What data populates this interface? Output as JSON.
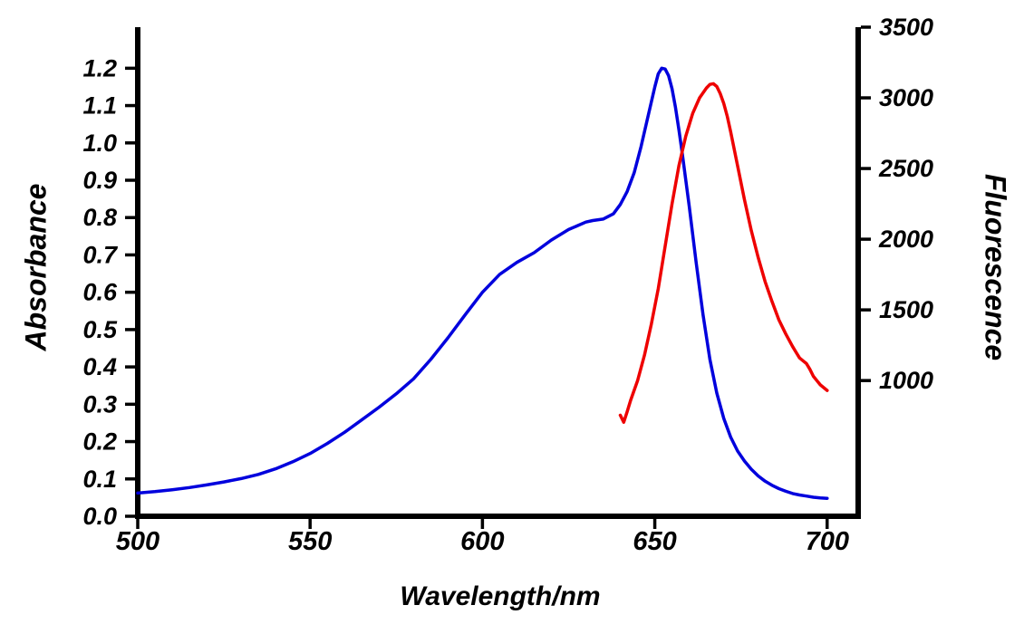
{
  "chart_data": {
    "type": "line",
    "title": "",
    "xlabel": "Wavelength/nm",
    "grid": false,
    "legend": "none",
    "background": "#ffffff",
    "x_axis": {
      "lim": [
        500,
        709
      ],
      "ticks": [
        500,
        550,
        600,
        650,
        700
      ],
      "tick_labels": [
        "500",
        "550",
        "600",
        "650",
        "700"
      ]
    },
    "left_axis": {
      "label": "Absorbance",
      "lim": [
        0,
        1.31
      ],
      "ticks": [
        0,
        0.1,
        0.2,
        0.3,
        0.4,
        0.5,
        0.6,
        0.7,
        0.8,
        0.9,
        1.0,
        1.1,
        1.2
      ],
      "tick_labels": [
        "0.0",
        "0.1",
        "0.2",
        "0.3",
        "0.4",
        "0.5",
        "0.6",
        "0.7",
        "0.8",
        "0.9",
        "1.0",
        "1.1",
        "1.2"
      ]
    },
    "right_axis": {
      "label": "Fluorescence",
      "lim": [
        40,
        3500
      ],
      "ticks": [
        1000,
        1500,
        2000,
        2500,
        3000,
        3500
      ],
      "tick_labels": [
        "1000",
        "1500",
        "2000",
        "2500",
        "3000",
        "3500"
      ]
    },
    "series": [
      {
        "name": "absorbance",
        "axis": "left",
        "color": "#0000dd",
        "x": [
          500,
          505,
          510,
          515,
          520,
          525,
          530,
          535,
          540,
          545,
          550,
          555,
          560,
          565,
          570,
          575,
          580,
          585,
          590,
          595,
          600,
          605,
          610,
          615,
          620,
          625,
          630,
          632,
          635,
          638,
          640,
          642,
          644,
          646,
          648,
          650,
          651,
          652,
          653,
          654,
          655,
          656,
          657,
          658,
          660,
          662,
          664,
          666,
          668,
          670,
          672,
          674,
          676,
          678,
          680,
          682,
          684,
          686,
          688,
          690,
          692,
          694,
          696,
          698,
          700
        ],
        "y": [
          0.062,
          0.066,
          0.071,
          0.077,
          0.084,
          0.092,
          0.101,
          0.112,
          0.127,
          0.146,
          0.168,
          0.195,
          0.225,
          0.258,
          0.292,
          0.328,
          0.368,
          0.42,
          0.478,
          0.54,
          0.6,
          0.648,
          0.68,
          0.706,
          0.74,
          0.768,
          0.788,
          0.792,
          0.796,
          0.81,
          0.835,
          0.87,
          0.92,
          0.99,
          1.07,
          1.15,
          1.185,
          1.2,
          1.198,
          1.18,
          1.145,
          1.095,
          1.035,
          0.97,
          0.83,
          0.68,
          0.54,
          0.42,
          0.33,
          0.262,
          0.212,
          0.175,
          0.148,
          0.126,
          0.108,
          0.094,
          0.083,
          0.074,
          0.067,
          0.061,
          0.057,
          0.054,
          0.051,
          0.049,
          0.048
        ]
      },
      {
        "name": "fluorescence",
        "axis": "right",
        "color": "#ee0000",
        "x": [
          640,
          641,
          642,
          643,
          645,
          647,
          649,
          651,
          653,
          655,
          657,
          659,
          661,
          663,
          665,
          666,
          667,
          668,
          669,
          670,
          671,
          672,
          674,
          676,
          678,
          680,
          682,
          684,
          686,
          688,
          690,
          691,
          692,
          693,
          694,
          695,
          696,
          697,
          698,
          699,
          700
        ],
        "y": [
          755,
          705,
          780,
          860,
          1000,
          1180,
          1400,
          1650,
          1950,
          2250,
          2520,
          2730,
          2890,
          3000,
          3070,
          3095,
          3100,
          3080,
          3030,
          2960,
          2870,
          2760,
          2520,
          2280,
          2060,
          1870,
          1700,
          1560,
          1430,
          1330,
          1240,
          1200,
          1160,
          1140,
          1120,
          1080,
          1030,
          1000,
          970,
          950,
          930
        ]
      }
    ]
  }
}
